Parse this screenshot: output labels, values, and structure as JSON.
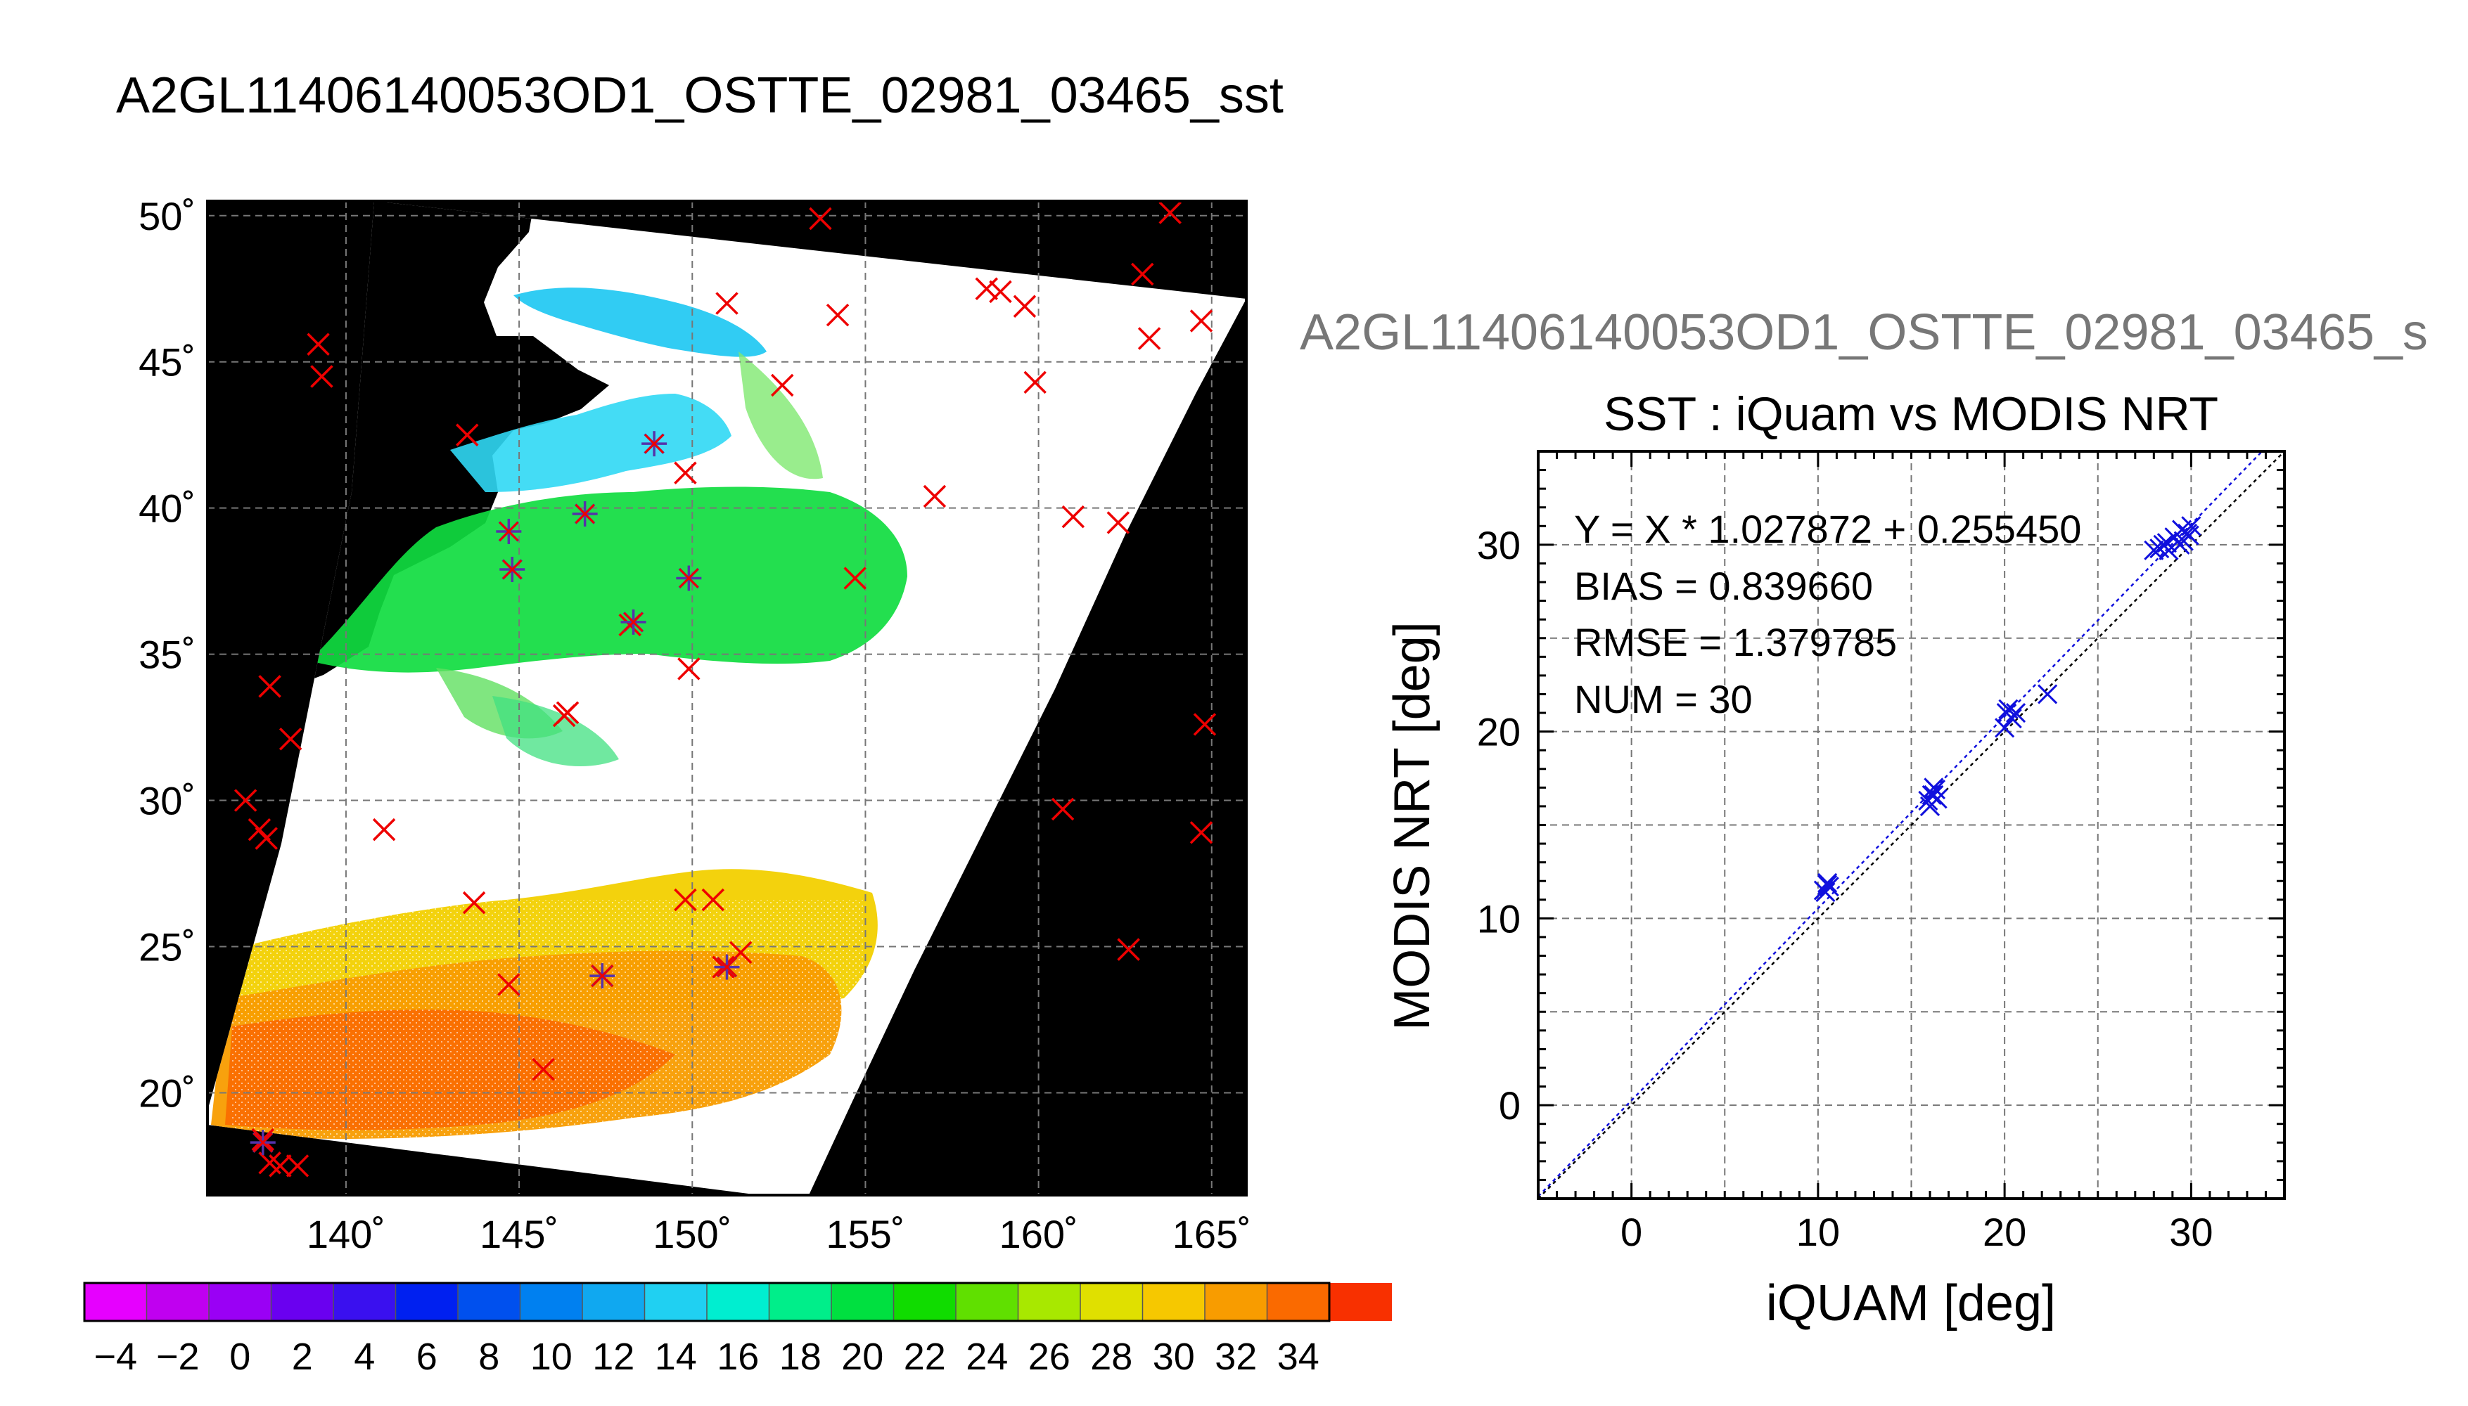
{
  "figure": {
    "title": "A2GL11406140053OD1_OSTTE_02981_03465_sst",
    "subtitle": "A2GL11406140053OD1_OSTTE_02981_03465_s"
  },
  "colors": {
    "match_marker": "#ee0000",
    "point_marker": "#1010dd",
    "point_marker_on_map": "#5533aa",
    "fit_line": "#1010dd",
    "identity_line": "#000000",
    "land": "#000000",
    "cloud": "#ffffff"
  },
  "chart_data": [
    {
      "type": "heatmap",
      "title": "A2GL11406140053OD1_OSTTE_02981_03465_sst",
      "xlim": [
        136,
        166
      ],
      "ylim": [
        16.5,
        50.5
      ],
      "x_ticks": [
        140,
        145,
        150,
        155,
        160,
        165
      ],
      "x_tick_labels": [
        "140˚",
        "145˚",
        "150˚",
        "155˚",
        "160˚",
        "165˚"
      ],
      "y_ticks": [
        20,
        25,
        30,
        35,
        40,
        45,
        50
      ],
      "y_tick_labels": [
        "20˚",
        "25˚",
        "30˚",
        "35˚",
        "40˚",
        "45˚",
        "50˚"
      ],
      "grid": true,
      "colorbar": {
        "min": -5,
        "max": 35,
        "step": 2,
        "tick_labels": [
          "−4",
          "−2",
          "0",
          "2",
          "4",
          "6",
          "8",
          "10",
          "12",
          "14",
          "16",
          "18",
          "20",
          "22",
          "24",
          "26",
          "28",
          "30",
          "32",
          "34"
        ],
        "colors": [
          "#e600ff",
          "#c000f0",
          "#9a00f5",
          "#6a00f0",
          "#3a10ef",
          "#0020f0",
          "#0050ee",
          "#0080f0",
          "#10a8f0",
          "#20d0f2",
          "#00eed0",
          "#00ee8a",
          "#00e040",
          "#10dc00",
          "#60e000",
          "#a8e800",
          "#e0e000",
          "#f6c800",
          "#f89c00",
          "#fa6a00",
          "#f83000"
        ]
      },
      "match_points": [
        [
          139.2,
          45.6
        ],
        [
          139.3,
          44.5
        ],
        [
          143.5,
          42.5
        ],
        [
          137.8,
          33.9
        ],
        [
          138.4,
          32.1
        ],
        [
          137.1,
          30.0
        ],
        [
          137.5,
          29.0
        ],
        [
          137.7,
          28.7
        ],
        [
          141.1,
          29.0
        ],
        [
          143.7,
          26.5
        ],
        [
          144.7,
          23.7
        ],
        [
          145.7,
          20.8
        ],
        [
          147.4,
          24.0
        ],
        [
          149.8,
          26.6
        ],
        [
          150.6,
          26.6
        ],
        [
          150.9,
          24.3
        ],
        [
          151.4,
          24.8
        ],
        [
          146.3,
          32.9
        ],
        [
          146.4,
          33.0
        ],
        [
          149.9,
          34.5
        ],
        [
          149.8,
          41.2
        ],
        [
          148.2,
          36.0
        ],
        [
          154.7,
          37.6
        ],
        [
          151.0,
          47.0
        ],
        [
          152.6,
          44.2
        ],
        [
          153.7,
          49.9
        ],
        [
          154.2,
          46.6
        ],
        [
          157.0,
          40.4
        ],
        [
          158.5,
          47.5
        ],
        [
          158.9,
          47.4
        ],
        [
          159.6,
          46.9
        ],
        [
          159.9,
          44.3
        ],
        [
          161.0,
          39.7
        ],
        [
          162.3,
          39.5
        ],
        [
          163.0,
          48.0
        ],
        [
          163.2,
          45.8
        ],
        [
          163.8,
          50.1
        ],
        [
          164.7,
          46.4
        ],
        [
          164.8,
          32.6
        ],
        [
          164.7,
          28.9
        ],
        [
          160.7,
          29.7
        ],
        [
          162.6,
          24.9
        ],
        [
          137.6,
          18.4
        ],
        [
          137.8,
          17.6
        ],
        [
          138.1,
          17.5
        ],
        [
          138.6,
          17.5
        ]
      ],
      "points": [
        [
          144.7,
          39.2
        ],
        [
          144.8,
          37.9
        ],
        [
          146.9,
          39.8
        ],
        [
          148.9,
          42.2
        ],
        [
          148.3,
          36.1
        ],
        [
          149.9,
          37.6
        ],
        [
          147.4,
          24.0
        ],
        [
          151.0,
          24.3
        ],
        [
          137.6,
          18.3
        ]
      ]
    },
    {
      "type": "scatter",
      "title": "SST : iQuam vs MODIS NRT",
      "xlabel": "iQUAM [deg]",
      "ylabel": "MODIS NRT [deg]",
      "xlim": [
        -5,
        35
      ],
      "ylim": [
        -5,
        35
      ],
      "x_ticks": [
        0,
        10,
        20,
        30
      ],
      "y_ticks": [
        0,
        10,
        20,
        30
      ],
      "grid": true,
      "annotations": [
        "Y = X * 1.027872 + 0.255450",
        "BIAS = 0.839660",
        "RMSE = 1.379785",
        "NUM = 30"
      ],
      "fit": {
        "slope": 1.027872,
        "intercept": 0.25545
      },
      "series": [
        {
          "x": [
            10.3,
            10.5,
            10.6,
            10.4,
            15.9,
            16.1,
            16.3,
            16.0,
            16.2,
            16.4,
            20.0,
            20.2,
            20.4,
            20.1,
            20.6,
            22.3,
            28.0,
            28.3,
            28.5,
            28.8,
            29.1,
            29.4,
            29.6,
            29.8,
            30.0,
            29.5,
            29.9,
            28.7,
            16.2,
            10.5
          ],
          "y": [
            11.5,
            11.9,
            11.7,
            11.4,
            16.3,
            16.6,
            16.9,
            16.0,
            17.0,
            16.4,
            20.2,
            21.2,
            20.7,
            21.0,
            21.0,
            22.0,
            29.7,
            29.8,
            30.0,
            29.7,
            30.4,
            30.0,
            30.2,
            30.6,
            31.0,
            30.8,
            30.5,
            30.1,
            16.6,
            11.8
          ]
        }
      ]
    }
  ]
}
